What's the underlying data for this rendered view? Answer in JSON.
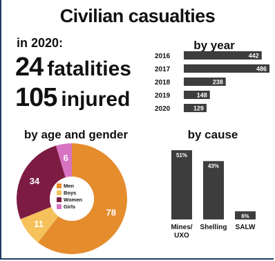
{
  "title": "Civilian casualties",
  "summary": {
    "year_label": "in 2020:",
    "fatalities_value": "24",
    "fatalities_label": "fatalities",
    "injured_value": "105",
    "injured_label": "injured"
  },
  "colors": {
    "bar": "#3d3d3d",
    "men": "#e58c2d",
    "boys": "#f4c15b",
    "women": "#7d1c43",
    "girls": "#d873c2"
  },
  "chart_data": [
    {
      "type": "bar",
      "orientation": "horizontal",
      "title": "by year",
      "categories": [
        "2016",
        "2017",
        "2018",
        "2019",
        "2020"
      ],
      "values": [
        442,
        486,
        238,
        148,
        129
      ],
      "xlim": [
        0,
        486
      ],
      "grid": false
    },
    {
      "type": "pie",
      "title": "by age and gender",
      "categories": [
        "Men",
        "Boys",
        "Women",
        "Girls"
      ],
      "values": [
        78,
        11,
        34,
        6
      ],
      "legend": "center"
    },
    {
      "type": "bar",
      "title": "by cause",
      "categories": [
        "Mines/\nUXO",
        "Shelling",
        "SALW"
      ],
      "values": [
        51,
        43,
        6
      ],
      "value_labels": [
        "51%",
        "43%",
        "6%"
      ],
      "ylim": [
        0,
        51
      ],
      "grid": false
    }
  ]
}
